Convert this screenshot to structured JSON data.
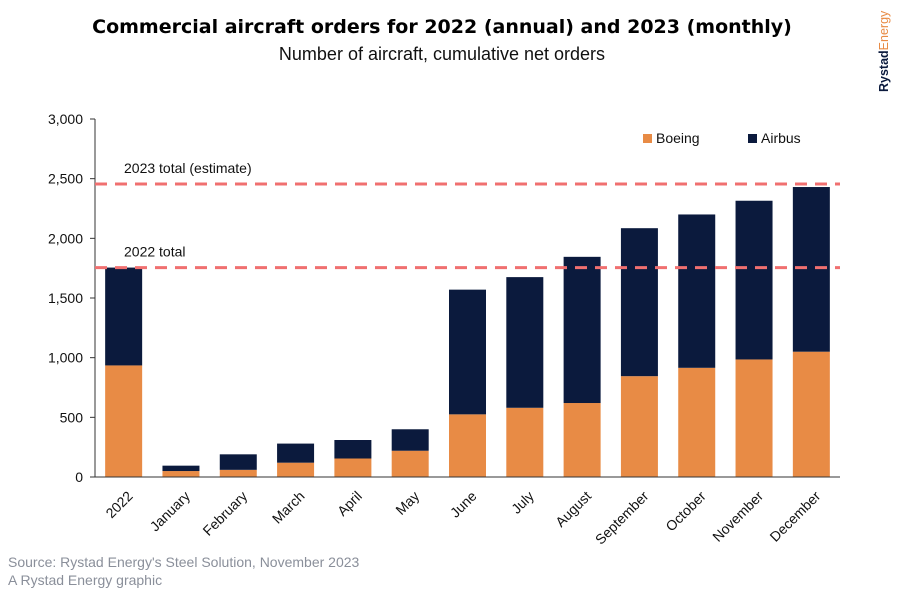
{
  "header": {
    "title": "Commercial aircraft orders for 2022 (annual) and 2023 (monthly)",
    "subtitle": "Number of aircraft, cumulative net orders"
  },
  "brand": {
    "part1": "Rystad",
    "part2": "Energy"
  },
  "footer": {
    "source": "Source: Rystad Energy's Steel Solution, November 2023",
    "credit": "A Rystad Energy graphic"
  },
  "colors": {
    "boeing": "#e88b45",
    "airbus": "#0b1a3d",
    "reference_line": "#f07070",
    "axis": "#333333"
  },
  "chart_data": {
    "type": "bar",
    "stacked": true,
    "categories": [
      "2022",
      "January",
      "February",
      "March",
      "April",
      "May",
      "June",
      "July",
      "August",
      "September",
      "October",
      "November",
      "December"
    ],
    "series": [
      {
        "name": "Boeing",
        "values": [
          935,
          50,
          60,
          120,
          155,
          220,
          525,
          580,
          620,
          845,
          915,
          985,
          1050
        ]
      },
      {
        "name": "Airbus",
        "values": [
          820,
          45,
          130,
          160,
          155,
          180,
          1045,
          1095,
          1225,
          1240,
          1285,
          1330,
          1380
        ]
      }
    ],
    "ylim": [
      0,
      3000
    ],
    "yticks": [
      0,
      500,
      1000,
      1500,
      2000,
      2500,
      3000
    ],
    "ytick_labels": [
      "0",
      "500",
      "1,000",
      "1,500",
      "2,000",
      "2,500",
      "3,000"
    ],
    "reference_lines": [
      {
        "label": "2023 total (estimate)",
        "value": 2455
      },
      {
        "label": "2022 total",
        "value": 1755
      }
    ],
    "legend_position": "top-right",
    "grid": false
  }
}
